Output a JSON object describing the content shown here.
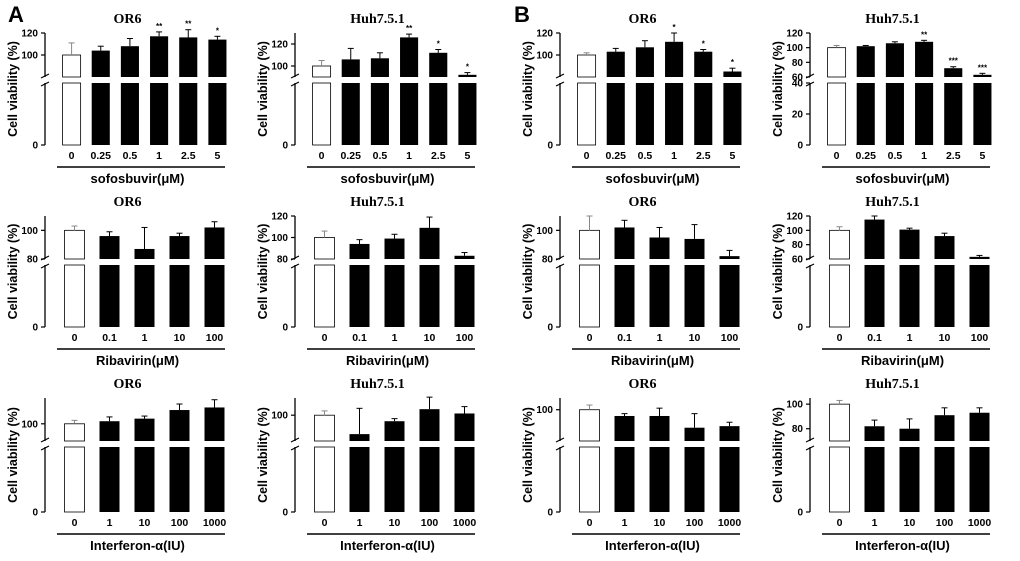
{
  "figure": {
    "panel_letters": [
      "A",
      "B"
    ],
    "colors": {
      "control_fill": "#ffffff",
      "treated_fill": "#000000",
      "axis": "#000000"
    }
  },
  "chart_data": [
    {
      "type": "bar",
      "panel": "A",
      "title": "OR6",
      "ylabel": "Cell viability (%)",
      "xlabel": "sofosbuvir(μM)",
      "categories": [
        "0",
        "0.25",
        "0.5",
        "1",
        "2.5",
        "5"
      ],
      "values": [
        100,
        104,
        108,
        117,
        116,
        114
      ],
      "errors": [
        11,
        4,
        7,
        4,
        7,
        3
      ],
      "significance": [
        "",
        "",
        "",
        "**",
        "**",
        "*"
      ],
      "lower_ticks": [
        "0"
      ],
      "upper_ticks": [
        "100",
        "120"
      ],
      "break": 80,
      "ylim": [
        80,
        120
      ]
    },
    {
      "type": "bar",
      "panel": "A",
      "title": "Huh7.5.1",
      "ylabel": "Cell viability (%)",
      "xlabel": "sofosbuvir(μM)",
      "categories": [
        "0",
        "0.25",
        "0.5",
        "1",
        "2.5",
        "5"
      ],
      "values": [
        100,
        106,
        107,
        126,
        112,
        92
      ],
      "errors": [
        5,
        10,
        5,
        3,
        3,
        2
      ],
      "significance": [
        "",
        "",
        "",
        "**",
        "*",
        "*"
      ],
      "lower_ticks": [
        "0"
      ],
      "upper_ticks": [
        "100",
        "120"
      ],
      "break": 90,
      "ylim": [
        90,
        130
      ]
    },
    {
      "type": "bar",
      "panel": "B",
      "title": "OR6",
      "ylabel": "Cell viability (%)",
      "xlabel": "sofosbuvir(μM)",
      "categories": [
        "0",
        "0.25",
        "0.5",
        "1",
        "2.5",
        "5"
      ],
      "values": [
        100,
        103,
        107,
        112,
        103,
        85
      ],
      "errors": [
        2,
        3,
        6,
        8,
        2,
        3
      ],
      "significance": [
        "",
        "",
        "",
        "*",
        "*",
        "*"
      ],
      "lower_ticks": [
        "0"
      ],
      "upper_ticks": [
        "100",
        "120"
      ],
      "break": 80,
      "ylim": [
        80,
        120
      ]
    },
    {
      "type": "bar",
      "panel": "B",
      "title": "Huh7.5.1",
      "ylabel": "Cell viability (%)",
      "xlabel": "sofosbuvir(μM)",
      "categories": [
        "0",
        "0.25",
        "0.5",
        "1",
        "2.5",
        "5"
      ],
      "values": [
        100,
        102,
        106,
        108,
        72,
        63
      ],
      "errors": [
        3,
        1,
        2,
        2,
        2,
        2
      ],
      "significance": [
        "",
        "",
        "",
        "**",
        "***",
        "***"
      ],
      "lower_ticks": [
        "0",
        "20",
        "40"
      ],
      "upper_ticks": [
        "60",
        "80",
        "100",
        "120"
      ],
      "break": 40,
      "lower_max": 40,
      "ylim": [
        60,
        120
      ]
    },
    {
      "type": "bar",
      "panel": "A",
      "title": "OR6",
      "ylabel": "Cell viability (%)",
      "xlabel": "Ribavirin(μM)",
      "categories": [
        "0",
        "0.1",
        "1",
        "10",
        "100"
      ],
      "values": [
        100,
        96,
        87,
        96,
        102
      ],
      "errors": [
        3,
        3,
        15,
        2,
        4
      ],
      "significance": [
        "",
        "",
        "",
        "",
        ""
      ],
      "lower_ticks": [
        "0"
      ],
      "upper_ticks": [
        "80",
        "100"
      ],
      "break": 80,
      "ylim": [
        80,
        110
      ]
    },
    {
      "type": "bar",
      "panel": "A",
      "title": "Huh7.5.1",
      "ylabel": "Cell viability (%)",
      "xlabel": "Ribavirin(μM)",
      "categories": [
        "0",
        "0.1",
        "1",
        "10",
        "100"
      ],
      "values": [
        100,
        94,
        99,
        109,
        83
      ],
      "errors": [
        6,
        4,
        4,
        10,
        3
      ],
      "significance": [
        "",
        "",
        "",
        "",
        ""
      ],
      "lower_ticks": [
        "0"
      ],
      "upper_ticks": [
        "80",
        "100",
        "120"
      ],
      "break": 80,
      "ylim": [
        80,
        120
      ]
    },
    {
      "type": "bar",
      "panel": "B",
      "title": "OR6",
      "ylabel": "Cell viability (%)",
      "xlabel": "Ribavirin(μM)",
      "categories": [
        "0",
        "0.1",
        "1",
        "10",
        "100"
      ],
      "values": [
        100,
        102,
        95,
        94,
        82
      ],
      "errors": [
        10,
        5,
        7,
        10,
        4
      ],
      "significance": [
        "",
        "",
        "",
        "",
        ""
      ],
      "lower_ticks": [
        "0"
      ],
      "upper_ticks": [
        "80",
        "100"
      ],
      "break": 80,
      "ylim": [
        80,
        110
      ]
    },
    {
      "type": "bar",
      "panel": "B",
      "title": "Huh7.5.1",
      "ylabel": "Cell viability (%)",
      "xlabel": "Ribavirin(μM)",
      "categories": [
        "0",
        "0.1",
        "1",
        "10",
        "100"
      ],
      "values": [
        100,
        115,
        101,
        92,
        63
      ],
      "errors": [
        5,
        5,
        2,
        4,
        2
      ],
      "significance": [
        "",
        "",
        "",
        "",
        ""
      ],
      "lower_ticks": [
        "0"
      ],
      "upper_ticks": [
        "60",
        "80",
        "100",
        "120"
      ],
      "break": 60,
      "ylim": [
        60,
        120
      ]
    },
    {
      "type": "bar",
      "panel": "A",
      "title": "OR6",
      "ylabel": "Cell viability (%)",
      "xlabel": "Interferon-α(IU)",
      "categories": [
        "0",
        "1",
        "10",
        "100",
        "1000"
      ],
      "values": [
        100,
        103,
        106,
        116,
        119
      ],
      "errors": [
        4,
        5,
        3,
        7,
        9
      ],
      "significance": [
        "",
        "",
        "",
        "",
        ""
      ],
      "lower_ticks": [
        "0"
      ],
      "upper_ticks": [
        "100"
      ],
      "break": 80,
      "ylim": [
        80,
        130
      ]
    },
    {
      "type": "bar",
      "panel": "A",
      "title": "Huh7.5.1",
      "ylabel": "Cell viability (%)",
      "xlabel": "Interferon-α(IU)",
      "categories": [
        "0",
        "1",
        "10",
        "100",
        "1000"
      ],
      "values": [
        100,
        78,
        93,
        107,
        102
      ],
      "errors": [
        5,
        30,
        3,
        14,
        8
      ],
      "significance": [
        "",
        "",
        "",
        "",
        ""
      ],
      "lower_ticks": [
        "0"
      ],
      "upper_ticks": [
        "100"
      ],
      "break": 70,
      "ylim": [
        70,
        120
      ]
    },
    {
      "type": "bar",
      "panel": "B",
      "title": "OR6",
      "ylabel": "Cell viability (%)",
      "xlabel": "Interferon-α(IU)",
      "categories": [
        "0",
        "1",
        "10",
        "100",
        "1000"
      ],
      "values": [
        100,
        92,
        92,
        77,
        79
      ],
      "errors": [
        6,
        3,
        10,
        18,
        5
      ],
      "significance": [
        "",
        "",
        "",
        "",
        ""
      ],
      "lower_ticks": [
        "0"
      ],
      "upper_ticks": [
        "100"
      ],
      "break": 60,
      "ylim": [
        60,
        115
      ]
    },
    {
      "type": "bar",
      "panel": "B",
      "title": "Huh7.5.1",
      "ylabel": "Cell viability (%)",
      "xlabel": "Interferon-α(IU)",
      "categories": [
        "0",
        "1",
        "10",
        "100",
        "1000"
      ],
      "values": [
        100,
        82,
        80,
        91,
        93
      ],
      "errors": [
        3,
        5,
        8,
        6,
        4
      ],
      "significance": [
        "",
        "",
        "",
        "",
        ""
      ],
      "lower_ticks": [
        "0"
      ],
      "upper_ticks": [
        "80",
        "100"
      ],
      "break": 70,
      "ylim": [
        70,
        105
      ]
    }
  ]
}
